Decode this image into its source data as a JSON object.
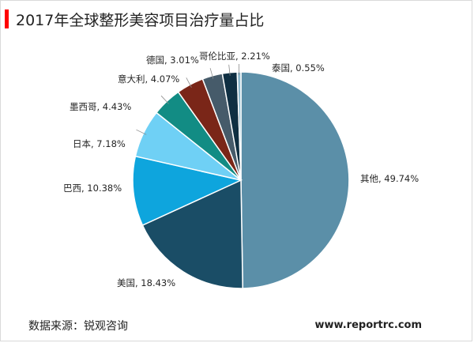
{
  "header": {
    "title": "2017年全球整形美容项目治疗量占比",
    "accent_color": "#ff0000"
  },
  "footer": {
    "source": "数据来源：锐观咨询",
    "site": "www.reportrc.com"
  },
  "chart_data": {
    "type": "pie",
    "title": "2017年全球整形美容项目治疗量占比",
    "unit": "%",
    "slices": [
      {
        "label": "其他",
        "value": 49.74,
        "text": "其他, 49.74%",
        "color": "#5b8fa8"
      },
      {
        "label": "美国",
        "value": 18.43,
        "text": "美国, 18.43%",
        "color": "#1a4d66"
      },
      {
        "label": "巴西",
        "value": 10.38,
        "text": "巴西, 10.38%",
        "color": "#0ea5dd"
      },
      {
        "label": "日本",
        "value": 7.18,
        "text": "日本, 7.18%",
        "color": "#6fd0f5"
      },
      {
        "label": "墨西哥",
        "value": 4.43,
        "text": "墨西哥, 4.43%",
        "color": "#128c84"
      },
      {
        "label": "意大利",
        "value": 4.07,
        "text": "意大利, 4.07%",
        "color": "#7a2618"
      },
      {
        "label": "德国",
        "value": 3.01,
        "text": "德国, 3.01%",
        "color": "#465b6a"
      },
      {
        "label": "哥伦比亚",
        "value": 2.21,
        "text": "哥伦比亚, 2.21%",
        "color": "#0f2f42"
      },
      {
        "label": "泰国",
        "value": 0.55,
        "text": "泰国, 0.55%",
        "color": "#8cb8cc"
      }
    ]
  }
}
